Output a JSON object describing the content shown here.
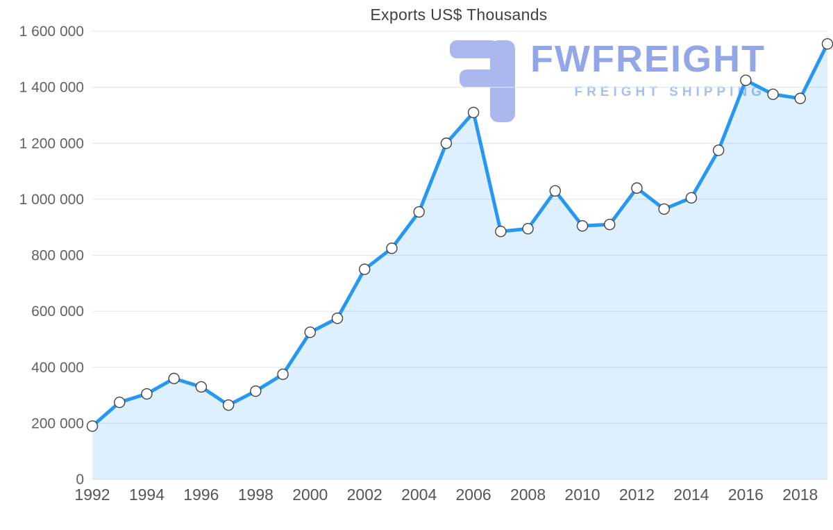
{
  "chart": {
    "title": "Exports US$ Thousands"
  },
  "watermark": {
    "brand": "FWFREIGHT",
    "tagline": "FREIGHT SHIPPING"
  },
  "colors": {
    "line": "#2797f4",
    "area_fill": "#daeafa",
    "marker_fill": "#ffffff",
    "marker_stroke": "#424242",
    "grid": "#e3e3e3",
    "axis_text": "#616161",
    "title_text": "#404040",
    "watermark_brand": "#93a7e8",
    "watermark_tagline": "#a4c1ef"
  },
  "chart_data": {
    "type": "area",
    "title": "Exports US$ Thousands",
    "xlabel": "",
    "ylabel": "",
    "x": [
      1992,
      1993,
      1994,
      1995,
      1996,
      1997,
      1998,
      1999,
      2000,
      2001,
      2002,
      2003,
      2004,
      2005,
      2006,
      2007,
      2008,
      2009,
      2010,
      2011,
      2012,
      2013,
      2014,
      2015,
      2016,
      2017,
      2018,
      2019
    ],
    "values": [
      190000,
      275000,
      305000,
      360000,
      330000,
      265000,
      315000,
      375000,
      525000,
      575000,
      750000,
      825000,
      955000,
      1200000,
      1310000,
      885000,
      895000,
      1030000,
      905000,
      910000,
      1040000,
      965000,
      1005000,
      1175000,
      1425000,
      1375000,
      1360000,
      1555000
    ],
    "ylim": [
      0,
      1600000
    ],
    "ytick_step": 200000,
    "ytick_labels": [
      "0",
      "200 000",
      "400 000",
      "600 000",
      "800 000",
      "1 000 000",
      "1 200 000",
      "1 400 000",
      "1 600 000"
    ],
    "xtick_labels": [
      "1992",
      "1994",
      "1996",
      "1998",
      "2000",
      "2002",
      "2004",
      "2006",
      "2008",
      "2010",
      "2012",
      "2014",
      "2016",
      "2018"
    ],
    "grid": true,
    "legend": "none",
    "marker": "circle"
  }
}
